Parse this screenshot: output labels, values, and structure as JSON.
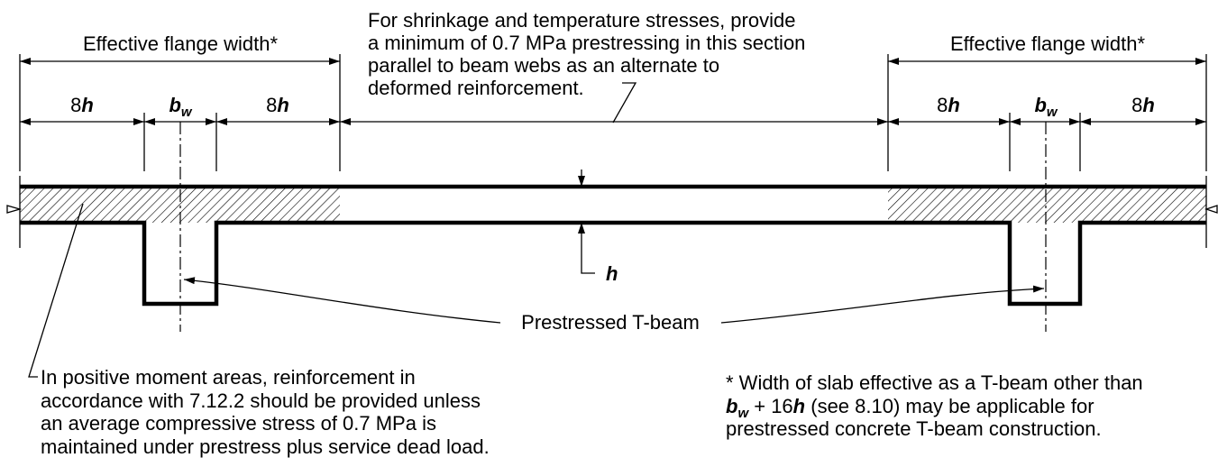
{
  "flange_labels": [
    "Effective flange width*",
    "Effective flange width*"
  ],
  "left_dimensions": [
    [
      "8",
      "h"
    ],
    [
      "b",
      "w"
    ],
    [
      "8",
      "h"
    ]
  ],
  "right_dimensions": [
    [
      "8",
      "h"
    ],
    [
      "b",
      "w"
    ],
    [
      "8",
      "h"
    ]
  ],
  "top_note": [
    "For shrinkage and temperature stresses, provide",
    "a minimum of 0.7 MPa prestressing in this section",
    "parallel to beam webs as an alternate to",
    "deformed reinforcement."
  ],
  "thickness_label": "h",
  "beam_label": "Prestressed T-beam",
  "left_note": [
    "In positive moment areas, reinforcement in",
    "accordance with 7.12.2 should be provided unless",
    "an average compressive stress of 0.7 MPa is",
    "maintained under prestress plus service dead load."
  ],
  "right_note": {
    "line1": "* Width of slab effective as a T-beam other than",
    "line2": [
      "b",
      "w",
      " + 16",
      "h",
      " (see 8.10) may be applicable for"
    ],
    "line3": "prestressed concrete T-beam construction."
  }
}
